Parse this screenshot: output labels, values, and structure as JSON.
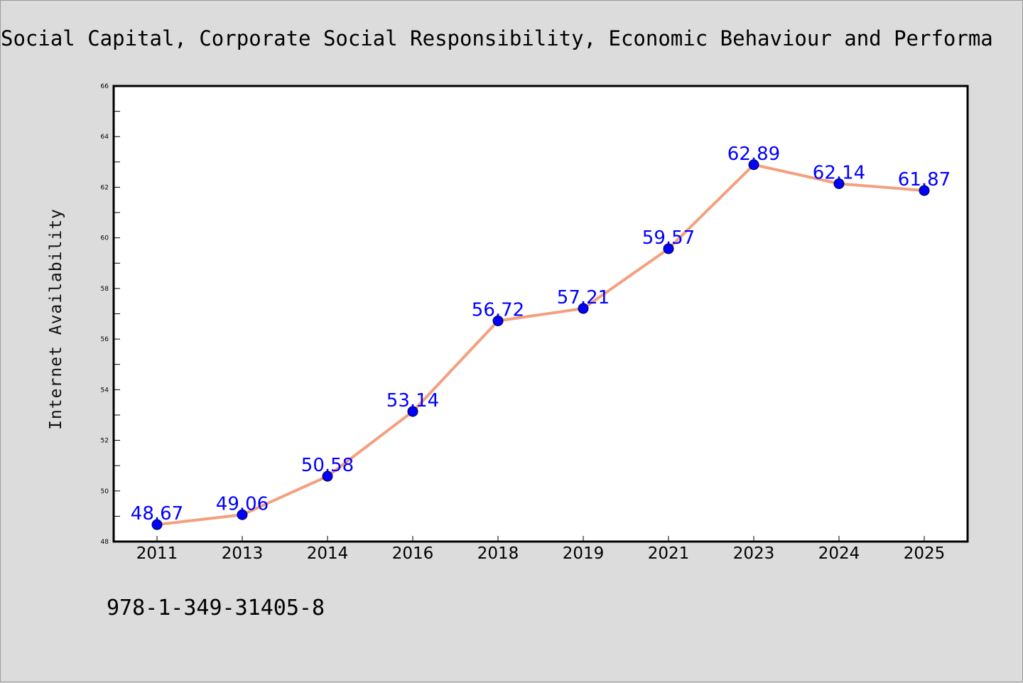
{
  "chart_data": {
    "type": "line",
    "title": "Social Capital, Corporate Social Responsibility, Economic Behaviour and Performa",
    "xlabel": "",
    "ylabel": "Internet Availability",
    "categories": [
      "2011",
      "2013",
      "2014",
      "2016",
      "2018",
      "2019",
      "2021",
      "2023",
      "2024",
      "2025"
    ],
    "series": [
      {
        "values": [
          48.67,
          49.06,
          50.58,
          53.14,
          56.72,
          57.21,
          59.57,
          62.89,
          62.14,
          61.87
        ],
        "labels": [
          "48.67",
          "49.06",
          "50.58",
          "53.14",
          "56.72",
          "57.21",
          "59.57",
          "62.89",
          "62.14",
          "61.87"
        ],
        "line_color": "#f4a07e",
        "marker_color": "#0000ff"
      }
    ],
    "ylim": [
      48,
      66
    ],
    "yticks": [
      "48",
      "50",
      "52",
      "54",
      "56",
      "58",
      "60",
      "62",
      "64",
      "66"
    ],
    "grid": false,
    "legend": "none"
  },
  "footer": {
    "isbn": "978-1-349-31405-8"
  },
  "colors": {
    "background": "#dcdcdc",
    "plot_background": "#ffffff"
  }
}
